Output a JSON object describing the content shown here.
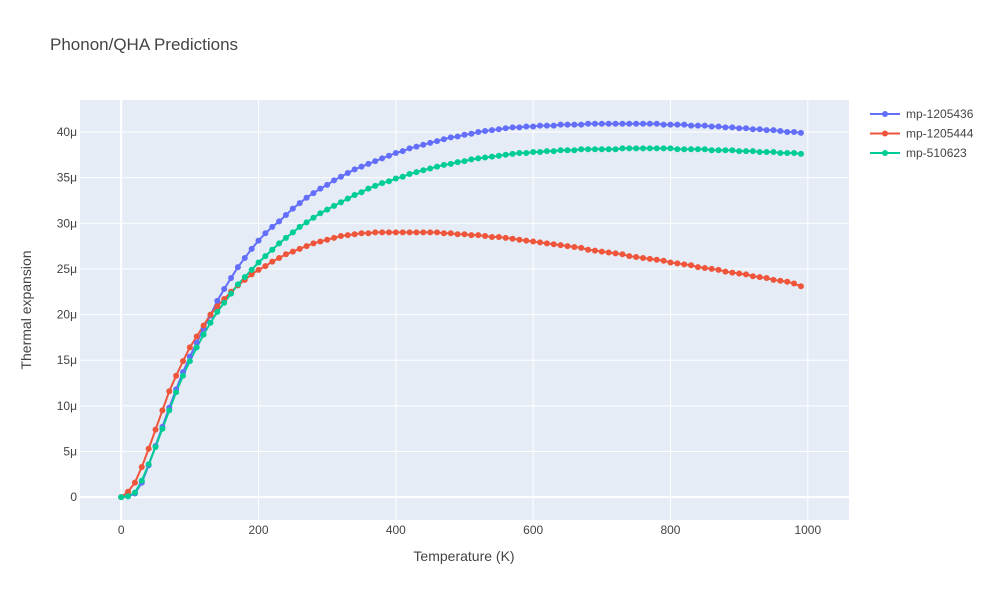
{
  "chart_data": {
    "type": "line",
    "title": "Phonon/QHA Predictions",
    "xlabel": "Temperature (K)",
    "ylabel": "Thermal expansion",
    "xlim": [
      -60,
      1060
    ],
    "ylim": [
      -2.5e-06,
      4.35e-05
    ],
    "x_ticks": [
      0,
      200,
      400,
      600,
      800,
      1000
    ],
    "x_tick_labels": [
      "0",
      "200",
      "400",
      "600",
      "800",
      "1000"
    ],
    "y_ticks": [
      0,
      5e-06,
      1e-05,
      1.5e-05,
      2e-05,
      2.5e-05,
      3e-05,
      3.5e-05,
      4e-05
    ],
    "y_tick_labels": [
      "0",
      "5μ",
      "10μ",
      "15μ",
      "20μ",
      "25μ",
      "30μ",
      "35μ",
      "40μ"
    ],
    "grid": true,
    "legend": "top-right",
    "background": "#e5ecf6",
    "x": [
      0,
      10,
      20,
      30,
      40,
      50,
      60,
      70,
      80,
      90,
      100,
      110,
      120,
      130,
      140,
      150,
      160,
      170,
      180,
      190,
      200,
      210,
      220,
      230,
      240,
      250,
      260,
      270,
      280,
      290,
      300,
      310,
      320,
      330,
      340,
      350,
      360,
      370,
      380,
      390,
      400,
      410,
      420,
      430,
      440,
      450,
      460,
      470,
      480,
      490,
      500,
      510,
      520,
      530,
      540,
      550,
      560,
      570,
      580,
      590,
      600,
      610,
      620,
      630,
      640,
      650,
      660,
      670,
      680,
      690,
      700,
      710,
      720,
      730,
      740,
      750,
      760,
      770,
      780,
      790,
      800,
      810,
      820,
      830,
      840,
      850,
      860,
      870,
      880,
      890,
      900,
      910,
      920,
      930,
      940,
      950,
      960,
      970,
      980,
      990
    ],
    "series": [
      {
        "name": "mp-1205436",
        "color": "#636efa",
        "values": [
          0,
          0.1,
          0.4,
          1.6,
          3.5,
          5.6,
          7.7,
          9.8,
          11.8,
          13.7,
          15.4,
          16.9,
          18.5,
          19.9,
          21.5,
          22.8,
          24.0,
          25.2,
          26.2,
          27.2,
          28.1,
          28.9,
          29.6,
          30.2,
          30.9,
          31.6,
          32.2,
          32.8,
          33.3,
          33.8,
          34.2,
          34.7,
          35.1,
          35.5,
          35.9,
          36.2,
          36.5,
          36.8,
          37.1,
          37.4,
          37.7,
          37.9,
          38.2,
          38.4,
          38.6,
          38.8,
          39.0,
          39.2,
          39.4,
          39.5,
          39.7,
          39.8,
          40.0,
          40.1,
          40.2,
          40.3,
          40.4,
          40.5,
          40.5,
          40.6,
          40.6,
          40.7,
          40.7,
          40.7,
          40.8,
          40.8,
          40.8,
          40.8,
          40.9,
          40.9,
          40.9,
          40.9,
          40.9,
          40.9,
          40.9,
          40.9,
          40.9,
          40.9,
          40.9,
          40.8,
          40.8,
          40.8,
          40.8,
          40.7,
          40.7,
          40.7,
          40.6,
          40.6,
          40.5,
          40.5,
          40.4,
          40.4,
          40.3,
          40.3,
          40.2,
          40.2,
          40.1,
          40.0,
          40.0,
          39.9
        ]
      },
      {
        "name": "mp-1205444",
        "color": "#ef553b",
        "values": [
          0,
          0.6,
          1.6,
          3.3,
          5.3,
          7.4,
          9.5,
          11.6,
          13.3,
          14.9,
          16.4,
          17.6,
          18.8,
          20.0,
          20.9,
          21.7,
          22.5,
          23.2,
          23.8,
          24.4,
          24.9,
          25.3,
          25.8,
          26.2,
          26.6,
          26.9,
          27.2,
          27.5,
          27.8,
          28.0,
          28.2,
          28.4,
          28.6,
          28.7,
          28.8,
          28.9,
          28.9,
          29.0,
          29.0,
          29.0,
          29.0,
          29.0,
          29.0,
          29.0,
          29.0,
          29.0,
          29.0,
          28.9,
          28.9,
          28.8,
          28.8,
          28.7,
          28.7,
          28.6,
          28.5,
          28.5,
          28.4,
          28.3,
          28.2,
          28.1,
          28.0,
          27.9,
          27.8,
          27.7,
          27.6,
          27.5,
          27.4,
          27.3,
          27.1,
          27.0,
          26.9,
          26.8,
          26.7,
          26.6,
          26.4,
          26.3,
          26.2,
          26.1,
          26.0,
          25.9,
          25.7,
          25.6,
          25.5,
          25.4,
          25.2,
          25.1,
          25.0,
          24.9,
          24.7,
          24.6,
          24.5,
          24.4,
          24.2,
          24.1,
          24.0,
          23.8,
          23.7,
          23.6,
          23.4,
          23.1
        ]
      },
      {
        "name": "mp-510623",
        "color": "#00cc96",
        "values": [
          0,
          0.1,
          0.5,
          1.8,
          3.6,
          5.5,
          7.5,
          9.5,
          11.5,
          13.3,
          14.9,
          16.4,
          17.8,
          19.1,
          20.3,
          21.3,
          22.3,
          23.3,
          24.1,
          24.9,
          25.7,
          26.4,
          27.1,
          27.8,
          28.4,
          29.0,
          29.6,
          30.1,
          30.6,
          31.1,
          31.5,
          31.9,
          32.3,
          32.7,
          33.1,
          33.4,
          33.8,
          34.1,
          34.4,
          34.6,
          34.9,
          35.1,
          35.4,
          35.6,
          35.8,
          36.0,
          36.2,
          36.4,
          36.5,
          36.7,
          36.8,
          37.0,
          37.1,
          37.2,
          37.3,
          37.4,
          37.5,
          37.6,
          37.7,
          37.7,
          37.8,
          37.8,
          37.9,
          37.9,
          38.0,
          38.0,
          38.0,
          38.1,
          38.1,
          38.1,
          38.1,
          38.1,
          38.1,
          38.2,
          38.2,
          38.2,
          38.2,
          38.2,
          38.2,
          38.2,
          38.2,
          38.1,
          38.1,
          38.1,
          38.1,
          38.1,
          38.0,
          38.0,
          38.0,
          38.0,
          37.9,
          37.9,
          37.9,
          37.8,
          37.8,
          37.8,
          37.7,
          37.7,
          37.7,
          37.6
        ]
      }
    ],
    "value_scale": "1e-6"
  }
}
